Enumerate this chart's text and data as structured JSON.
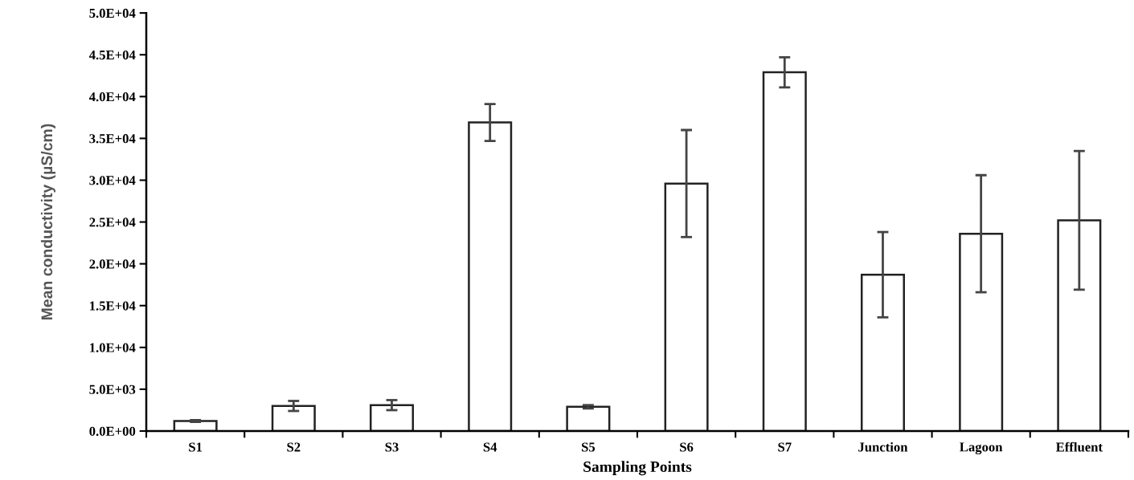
{
  "chart_data": {
    "type": "bar",
    "xlabel": "Sampling Points",
    "ylabel": "Mean conductivity (µS/cm)",
    "categories": [
      "S1",
      "S2",
      "S3",
      "S4",
      "S5",
      "S6",
      "S7",
      "Junction",
      "Lagoon",
      "Effluent"
    ],
    "values": [
      1200,
      3000,
      3100,
      36900,
      2900,
      29600,
      42900,
      18700,
      23600,
      25200
    ],
    "errors": [
      100,
      600,
      600,
      2200,
      200,
      6400,
      1800,
      5100,
      7000,
      8300
    ],
    "color": "#ffffff",
    "ylim": [
      0,
      50000
    ],
    "yticks": [
      {
        "value": 0,
        "label": "0.0E+00"
      },
      {
        "value": 5000,
        "label": "5.0E+03"
      },
      {
        "value": 10000,
        "label": "1.0E+04"
      },
      {
        "value": 15000,
        "label": "1.5E+04"
      },
      {
        "value": 20000,
        "label": "2.0E+04"
      },
      {
        "value": 25000,
        "label": "2.5E+04"
      },
      {
        "value": 30000,
        "label": "3.0E+04"
      },
      {
        "value": 35000,
        "label": "3.5E+04"
      },
      {
        "value": 40000,
        "label": "4.0E+04"
      },
      {
        "value": 45000,
        "label": "4.5E+04"
      },
      {
        "value": 50000,
        "label": "5.0E+04"
      }
    ],
    "grid": false,
    "legend": false
  }
}
